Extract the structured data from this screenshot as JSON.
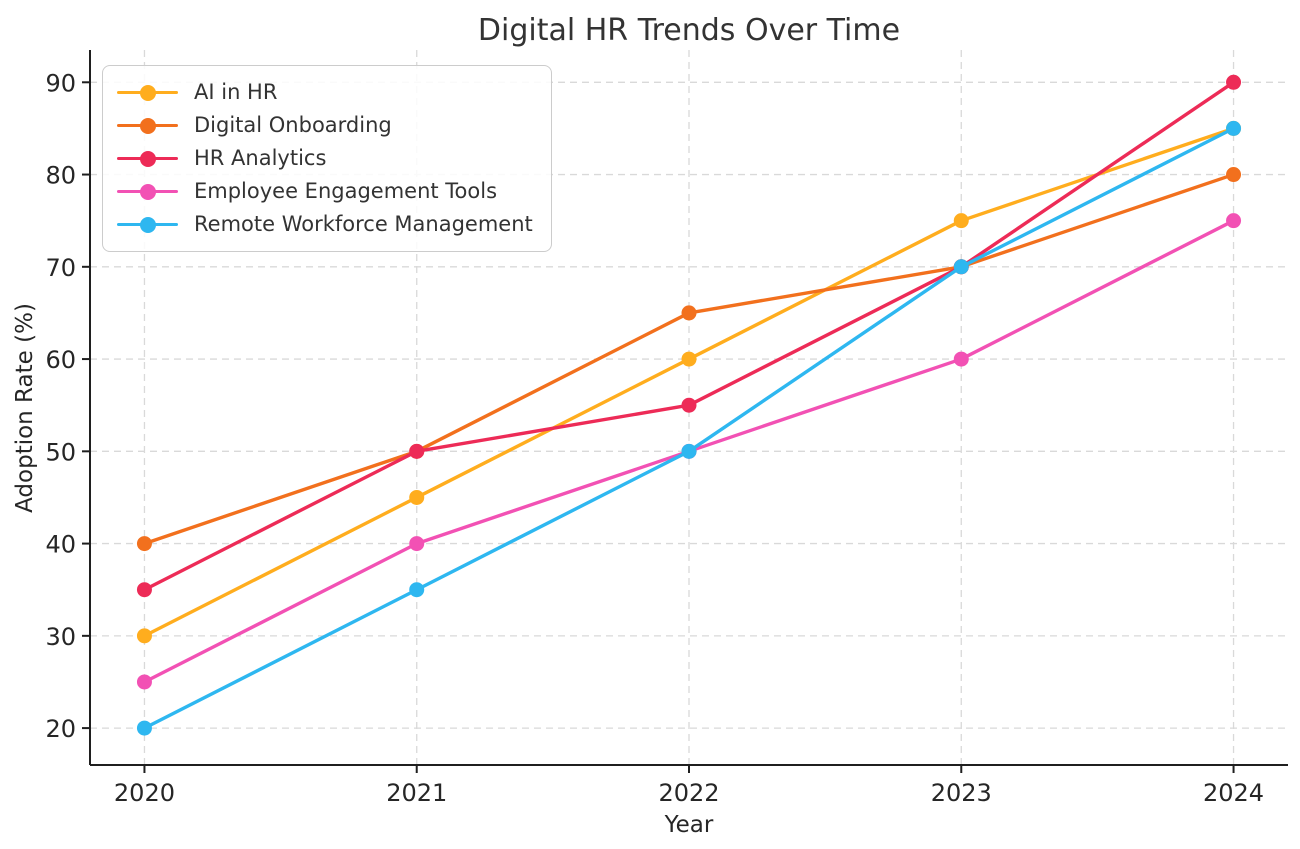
{
  "chart_data": {
    "type": "line",
    "title": "Digital HR Trends Over Time",
    "xlabel": "Year",
    "ylabel": "Adoption Rate (%)",
    "x": [
      2020,
      2021,
      2022,
      2023,
      2024
    ],
    "series": [
      {
        "name": "AI in HR",
        "color": "#FFAD1E",
        "values": [
          30,
          45,
          60,
          75,
          85
        ]
      },
      {
        "name": "Digital Onboarding",
        "color": "#F2701D",
        "values": [
          40,
          50,
          65,
          70,
          80
        ]
      },
      {
        "name": "HR Analytics",
        "color": "#ED2B57",
        "values": [
          35,
          50,
          55,
          70,
          90
        ]
      },
      {
        "name": "Employee Engagement Tools",
        "color": "#F251B4",
        "values": [
          25,
          40,
          50,
          60,
          75
        ]
      },
      {
        "name": "Remote Workforce Management",
        "color": "#2EB7F0",
        "values": [
          20,
          35,
          50,
          70,
          85
        ]
      }
    ],
    "yticks": [
      20,
      30,
      40,
      50,
      60,
      70,
      80,
      90
    ],
    "xticks": [
      2020,
      2021,
      2022,
      2023,
      2024
    ],
    "xlim": [
      2019.8,
      2024.2
    ],
    "ylim": [
      16,
      93.5
    ],
    "grid": "dashed",
    "grid_color": "#d9d9d9",
    "spine_color": "#1f1f1f",
    "legend_position": "top-left"
  }
}
